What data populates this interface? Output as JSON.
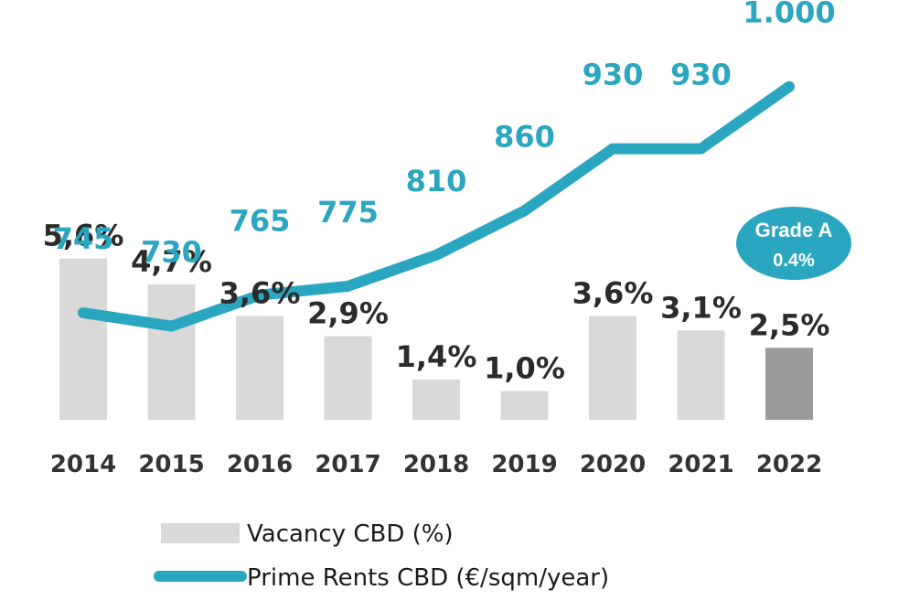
{
  "chart_data": {
    "type": "bar+line",
    "categories": [
      "2014",
      "2015",
      "2016",
      "2017",
      "2018",
      "2019",
      "2020",
      "2021",
      "2022"
    ],
    "series": [
      {
        "name": "Vacancy CBD (%)",
        "type": "bar",
        "values": [
          5.6,
          4.7,
          3.6,
          2.9,
          1.4,
          1.0,
          3.6,
          3.1,
          2.5
        ],
        "labels": [
          "5,6%",
          "4,7%",
          "3,6%",
          "2,9%",
          "1,4%",
          "1,0%",
          "3,6%",
          "3,1%",
          "2,5%"
        ],
        "color": "#d9d9d9",
        "highlight_color": "#9b9b9b",
        "highlight_index": 8
      },
      {
        "name": "Prime Rents CBD (€/sqm/year)",
        "type": "line",
        "values": [
          745,
          730,
          765,
          775,
          810,
          860,
          930,
          930,
          1000
        ],
        "labels": [
          "745",
          "730",
          "765",
          "775",
          "810",
          "860",
          "930",
          "930",
          "1.000"
        ],
        "color": "#2aa6c0"
      }
    ],
    "annotation": {
      "line1": "Grade A",
      "line2": "0.4%",
      "color": "#2aa6c0"
    },
    "legend": {
      "position": "bottom"
    },
    "grid": false
  }
}
